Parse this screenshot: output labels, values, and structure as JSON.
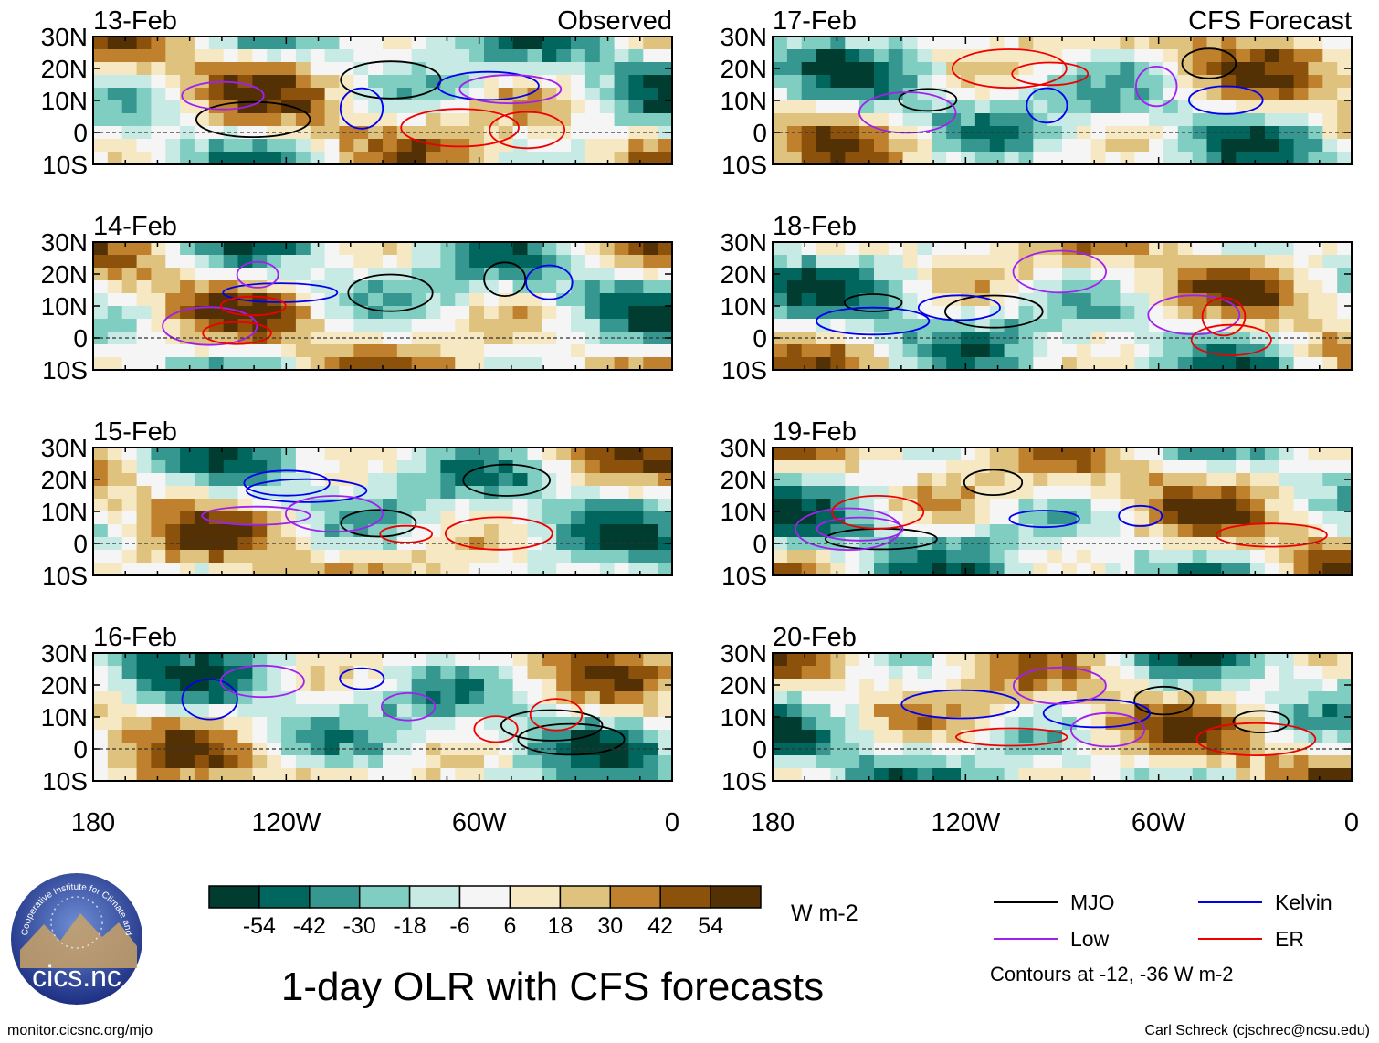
{
  "chart_data": {
    "type": "heatmap",
    "title": "1-day OLR with CFS forecasts",
    "columns": [
      {
        "label": "Observed",
        "dates": [
          "13-Feb",
          "14-Feb",
          "15-Feb",
          "16-Feb"
        ]
      },
      {
        "label": "CFS Forecast",
        "dates": [
          "17-Feb",
          "18-Feb",
          "19-Feb",
          "20-Feb"
        ]
      }
    ],
    "x_axis": {
      "ticks": [
        "180",
        "120W",
        "60W",
        "0"
      ],
      "range": [
        -180,
        0
      ],
      "tick_values": [
        -180,
        -120,
        -60,
        0
      ]
    },
    "y_axis": {
      "ticks": [
        "30N",
        "20N",
        "10N",
        "0",
        "10S"
      ],
      "range": [
        -10,
        30
      ],
      "tick_values": [
        30,
        20,
        10,
        0,
        -10
      ]
    },
    "colorbar": {
      "tick_labels": [
        "-54",
        "-42",
        "-30",
        "-18",
        "-6",
        "6",
        "18",
        "30",
        "42",
        "54"
      ],
      "colors": [
        "#003c30",
        "#01665e",
        "#35978f",
        "#80cdc1",
        "#c7eae5",
        "#f5f5f5",
        "#f6e8c3",
        "#dfc27d",
        "#bf812d",
        "#8c510a",
        "#543005"
      ],
      "units": "W m-2"
    },
    "legend": {
      "entries": [
        {
          "name": "MJO",
          "color": "#000000"
        },
        {
          "name": "Kelvin",
          "color": "#0000ee"
        },
        {
          "name": "Low",
          "color": "#a020f0"
        },
        {
          "name": "ER",
          "color": "#ee0000"
        }
      ],
      "note": "Contours at -12, -36 W m-2"
    }
  },
  "footer": {
    "left": "monitor.cicsnc.org/mjo",
    "right": "Carl Schreck (cjschrec@ncsu.edu)"
  },
  "logo": {
    "text": "cics.nc",
    "ring_text": "Cooperative Institute for Climate and Satellites"
  }
}
